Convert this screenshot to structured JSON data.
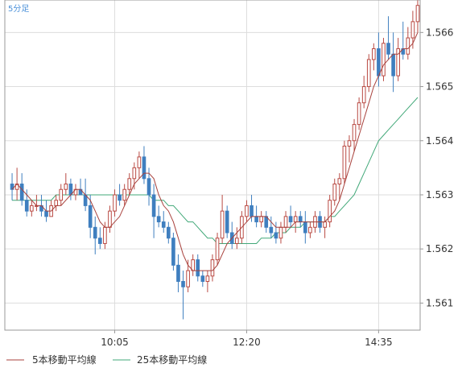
{
  "chart_data": {
    "type": "candlestick",
    "timeframe_label": "5分足",
    "x_tick_labels": [
      "10:05",
      "12:20",
      "14:35"
    ],
    "y_tick_labels": [
      "1.566",
      "1.565",
      "1.564",
      "1.563",
      "1.562",
      "1.561"
    ],
    "y_ticks": [
      1.566,
      1.565,
      1.564,
      1.563,
      1.562,
      1.561
    ],
    "ylim": [
      1.5605,
      1.5666
    ],
    "grid": true,
    "legend_position": "bottom-left",
    "series": [
      {
        "name": "5本移動平均線",
        "color": "#a8413c"
      },
      {
        "name": "25本移動平均線",
        "color": "#41a878"
      }
    ],
    "colors": {
      "up": "#b94a43",
      "down": "#3f7fbf",
      "frame": "#999999",
      "grid": "#dddddd",
      "timeframe": "#4a90d9"
    },
    "candles": [
      [
        1.5632,
        1.5634,
        1.5629,
        1.5631
      ],
      [
        1.5631,
        1.5635,
        1.5629,
        1.5632
      ],
      [
        1.5632,
        1.5634,
        1.5628,
        1.5629
      ],
      [
        1.5629,
        1.5631,
        1.5626,
        1.5627
      ],
      [
        1.5627,
        1.5629,
        1.5626,
        1.5628
      ],
      [
        1.5628,
        1.563,
        1.5627,
        1.5628
      ],
      [
        1.5628,
        1.563,
        1.5626,
        1.5627
      ],
      [
        1.5627,
        1.5629,
        1.5625,
        1.5626
      ],
      [
        1.5626,
        1.5629,
        1.5626,
        1.5628
      ],
      [
        1.5628,
        1.563,
        1.5627,
        1.5629
      ],
      [
        1.5629,
        1.5632,
        1.5628,
        1.5631
      ],
      [
        1.5631,
        1.5634,
        1.563,
        1.5632
      ],
      [
        1.5632,
        1.5633,
        1.5629,
        1.563
      ],
      [
        1.563,
        1.5632,
        1.5629,
        1.5631
      ],
      [
        1.5631,
        1.5633,
        1.563,
        1.563
      ],
      [
        1.563,
        1.5633,
        1.5627,
        1.5628
      ],
      [
        1.5628,
        1.563,
        1.5622,
        1.5624
      ],
      [
        1.5624,
        1.5626,
        1.5619,
        1.5622
      ],
      [
        1.5622,
        1.5624,
        1.562,
        1.5621
      ],
      [
        1.5621,
        1.5625,
        1.562,
        1.5624
      ],
      [
        1.5624,
        1.5628,
        1.5623,
        1.5627
      ],
      [
        1.5627,
        1.5631,
        1.5626,
        1.563
      ],
      [
        1.563,
        1.5632,
        1.5628,
        1.5629
      ],
      [
        1.5629,
        1.5632,
        1.5628,
        1.5631
      ],
      [
        1.5631,
        1.5634,
        1.563,
        1.5633
      ],
      [
        1.5633,
        1.5636,
        1.5631,
        1.5635
      ],
      [
        1.5635,
        1.5638,
        1.5633,
        1.5637
      ],
      [
        1.5637,
        1.5639,
        1.5632,
        1.5633
      ],
      [
        1.5633,
        1.5635,
        1.5628,
        1.563
      ],
      [
        1.563,
        1.5632,
        1.5622,
        1.5626
      ],
      [
        1.5626,
        1.5628,
        1.5624,
        1.5625
      ],
      [
        1.5625,
        1.5627,
        1.5623,
        1.5624
      ],
      [
        1.5624,
        1.5625,
        1.5621,
        1.5622
      ],
      [
        1.5622,
        1.5623,
        1.5616,
        1.5617
      ],
      [
        1.5617,
        1.5619,
        1.5612,
        1.5614
      ],
      [
        1.5614,
        1.5616,
        1.5607,
        1.5613
      ],
      [
        1.5613,
        1.5618,
        1.5612,
        1.5616
      ],
      [
        1.5616,
        1.5619,
        1.5615,
        1.5618
      ],
      [
        1.5618,
        1.5619,
        1.5614,
        1.5615
      ],
      [
        1.5615,
        1.5616,
        1.5613,
        1.5614
      ],
      [
        1.5614,
        1.5616,
        1.5612,
        1.5615
      ],
      [
        1.5615,
        1.5619,
        1.5614,
        1.5618
      ],
      [
        1.5618,
        1.5623,
        1.5617,
        1.5622
      ],
      [
        1.5622,
        1.563,
        1.5621,
        1.5627
      ],
      [
        1.5627,
        1.5628,
        1.5622,
        1.5623
      ],
      [
        1.5623,
        1.5625,
        1.562,
        1.5621
      ],
      [
        1.5621,
        1.5624,
        1.562,
        1.5622
      ],
      [
        1.5622,
        1.5627,
        1.5621,
        1.5626
      ],
      [
        1.5626,
        1.5629,
        1.5625,
        1.5628
      ],
      [
        1.5628,
        1.563,
        1.5625,
        1.5626
      ],
      [
        1.5626,
        1.5628,
        1.5624,
        1.5625
      ],
      [
        1.5625,
        1.5627,
        1.5624,
        1.5626
      ],
      [
        1.5626,
        1.5627,
        1.5623,
        1.5624
      ],
      [
        1.5624,
        1.5626,
        1.5622,
        1.5623
      ],
      [
        1.5623,
        1.5625,
        1.5621,
        1.5622
      ],
      [
        1.5622,
        1.5625,
        1.5621,
        1.5624
      ],
      [
        1.5624,
        1.5627,
        1.5623,
        1.5626
      ],
      [
        1.5626,
        1.5628,
        1.5624,
        1.5625
      ],
      [
        1.5625,
        1.5627,
        1.5623,
        1.5626
      ],
      [
        1.5626,
        1.5627,
        1.5624,
        1.5625
      ],
      [
        1.5625,
        1.5627,
        1.5621,
        1.5623
      ],
      [
        1.5623,
        1.5625,
        1.5622,
        1.5624
      ],
      [
        1.5624,
        1.5627,
        1.5623,
        1.5626
      ],
      [
        1.5626,
        1.5627,
        1.5623,
        1.5624
      ],
      [
        1.5624,
        1.5626,
        1.5622,
        1.5625
      ],
      [
        1.5625,
        1.563,
        1.5624,
        1.5629
      ],
      [
        1.5629,
        1.5633,
        1.5628,
        1.5632
      ],
      [
        1.5632,
        1.5634,
        1.5629,
        1.5633
      ],
      [
        1.5633,
        1.564,
        1.5632,
        1.5639
      ],
      [
        1.5639,
        1.5641,
        1.5636,
        1.564
      ],
      [
        1.564,
        1.5644,
        1.5638,
        1.5643
      ],
      [
        1.5643,
        1.5648,
        1.5642,
        1.5647
      ],
      [
        1.5647,
        1.5652,
        1.5646,
        1.565
      ],
      [
        1.565,
        1.5656,
        1.5649,
        1.5655
      ],
      [
        1.5655,
        1.5658,
        1.5653,
        1.5657
      ],
      [
        1.5657,
        1.566,
        1.565,
        1.5652
      ],
      [
        1.5652,
        1.5659,
        1.5651,
        1.5658
      ],
      [
        1.5658,
        1.5663,
        1.5655,
        1.5656
      ],
      [
        1.5656,
        1.566,
        1.5649,
        1.5652
      ],
      [
        1.5652,
        1.5659,
        1.5651,
        1.5657
      ],
      [
        1.5657,
        1.5662,
        1.5655,
        1.5656
      ],
      [
        1.5656,
        1.5661,
        1.5655,
        1.5659
      ],
      [
        1.5659,
        1.5664,
        1.5657,
        1.5662
      ],
      [
        1.5662,
        1.5667,
        1.566,
        1.5665
      ]
    ],
    "ma5": [
      1.5631,
      1.5632,
      1.5631,
      1.563,
      1.5629,
      1.5628,
      1.5628,
      1.5627,
      1.5627,
      1.5628,
      1.5628,
      1.5629,
      1.563,
      1.5631,
      1.5631,
      1.563,
      1.5629,
      1.5627,
      1.5625,
      1.5624,
      1.5624,
      1.5625,
      1.5626,
      1.5628,
      1.563,
      1.5632,
      1.5633,
      1.5634,
      1.5634,
      1.5633,
      1.563,
      1.5628,
      1.5627,
      1.5625,
      1.5622,
      1.5619,
      1.5617,
      1.5616,
      1.5616,
      1.5616,
      1.5616,
      1.5616,
      1.5617,
      1.5619,
      1.5621,
      1.5622,
      1.5623,
      1.5624,
      1.5625,
      1.5626,
      1.5626,
      1.5626,
      1.5626,
      1.5625,
      1.5624,
      1.5624,
      1.5624,
      1.5624,
      1.5625,
      1.5625,
      1.5625,
      1.5625,
      1.5625,
      1.5625,
      1.5625,
      1.5626,
      1.5627,
      1.5629,
      1.5632,
      1.5635,
      1.5638,
      1.5641,
      1.5644,
      1.5647,
      1.565,
      1.5652,
      1.5654,
      1.5655,
      1.5656,
      1.5656,
      1.5657,
      1.5657,
      1.5658,
      1.566
    ],
    "ma25": [
      1.5629,
      1.5629,
      1.5629,
      1.5629,
      1.5629,
      1.5629,
      1.5629,
      1.5629,
      1.5629,
      1.563,
      1.563,
      1.563,
      1.563,
      1.563,
      1.563,
      1.563,
      1.563,
      1.563,
      1.563,
      1.563,
      1.563,
      1.563,
      1.563,
      1.563,
      1.563,
      1.563,
      1.563,
      1.563,
      1.563,
      1.5629,
      1.5629,
      1.5629,
      1.5628,
      1.5628,
      1.5627,
      1.5626,
      1.5625,
      1.5625,
      1.5624,
      1.5623,
      1.5622,
      1.5622,
      1.5621,
      1.5621,
      1.5621,
      1.5621,
      1.5621,
      1.5621,
      1.5621,
      1.5621,
      1.5621,
      1.5622,
      1.5622,
      1.5622,
      1.5623,
      1.5623,
      1.5623,
      1.5624,
      1.5624,
      1.5624,
      1.5625,
      1.5625,
      1.5625,
      1.5625,
      1.5625,
      1.5626,
      1.5626,
      1.5627,
      1.5628,
      1.5629,
      1.563,
      1.5632,
      1.5634,
      1.5636,
      1.5638,
      1.564,
      1.5641,
      1.5642,
      1.5643,
      1.5644,
      1.5645,
      1.5646,
      1.5647,
      1.5648
    ]
  }
}
